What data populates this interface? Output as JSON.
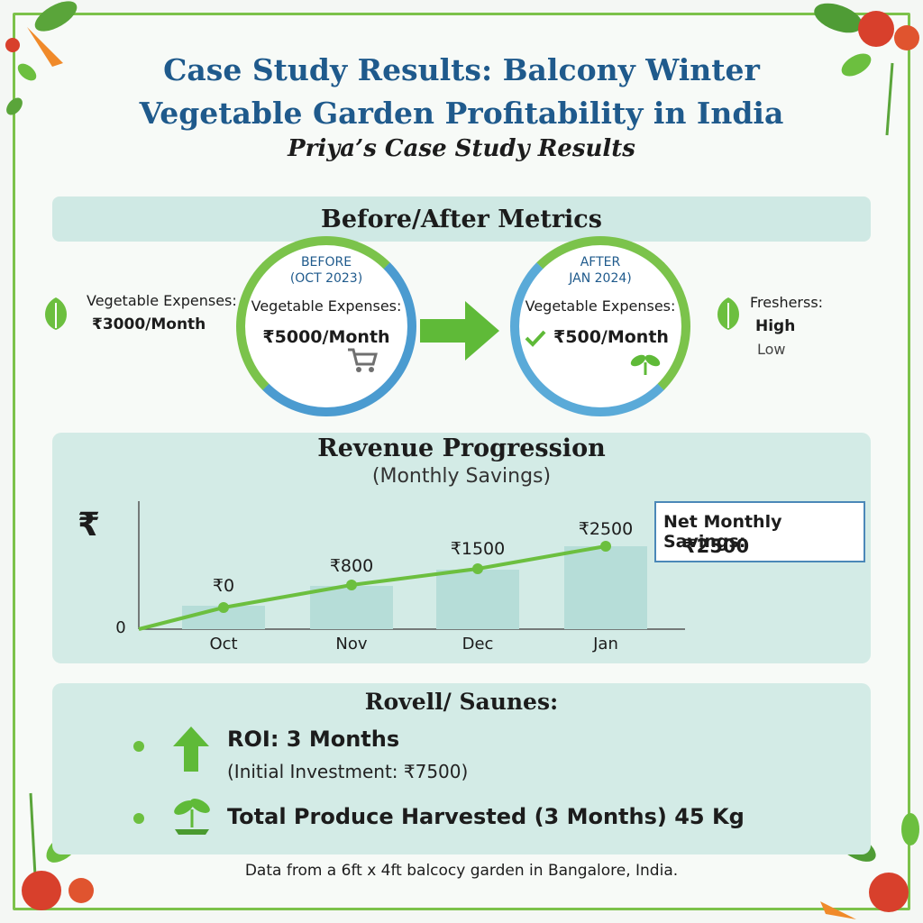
{
  "header": {
    "title_line1": "Case Study Results: Balcony Winter",
    "title_line2": "Vegetable Garden Profitability in India",
    "subtitle": "Priya’s Case Study Results"
  },
  "metrics": {
    "section_title": "Before/After Metrics",
    "left_side": {
      "label": "Vegetable Expenses:",
      "value": "₹3000/Month"
    },
    "before": {
      "tag": "BEFORE",
      "period": "(OCT 2023)",
      "label": "Vegetable Expenses:",
      "value": "₹5000/Month"
    },
    "after": {
      "tag": "AFTER",
      "period": "JAN 2024)",
      "label": "Vegetable Expenses:",
      "value": "₹500/Month"
    },
    "right_side": {
      "label": "Fresherss:",
      "value": "High",
      "subvalue": "Low"
    },
    "icons": [
      "leaf-icon",
      "shopping-cart-icon",
      "right-arrow-icon",
      "check-icon",
      "sprout-icon"
    ]
  },
  "revenue": {
    "title": "Revenue Progression",
    "subtitle": "(Monthly Savings)",
    "axis_symbol": "₹",
    "callout_title": "Net Monthly Savings:",
    "callout_value": "₹2500"
  },
  "chart_data": {
    "type": "bar",
    "title": "Revenue Progression",
    "subtitle": "(Monthly Savings)",
    "ylabel": "₹",
    "categories": [
      "Oct",
      "Nov",
      "Dec",
      "Jan"
    ],
    "series": [
      {
        "values": [
          0,
          800,
          1500,
          2500
        ],
        "labels": [
          "₹0",
          "₹800",
          "₹1500",
          "₹2500"
        ]
      }
    ],
    "y_ticks": [
      "0"
    ],
    "overlay": "line",
    "grid": false,
    "colors": {
      "bar": "#b6ddd8",
      "line": "#6cbf3f"
    }
  },
  "results": {
    "title": "Rovell/ Saunes:",
    "roi_label": "ROI: 3 Months",
    "roi_note": "(Initial Investment: ₹7500)",
    "produce_label": "Total Produce Harvested (3 Months) 45 Kg"
  },
  "footer": "Data from a 6ft x 4ft balcocy garden in Bangalore, India.",
  "colors": {
    "accent": "#7cc24a",
    "title": "#1f5a8c",
    "panel": "#d3ebe6",
    "ring_blue": "#4b9bd0"
  }
}
